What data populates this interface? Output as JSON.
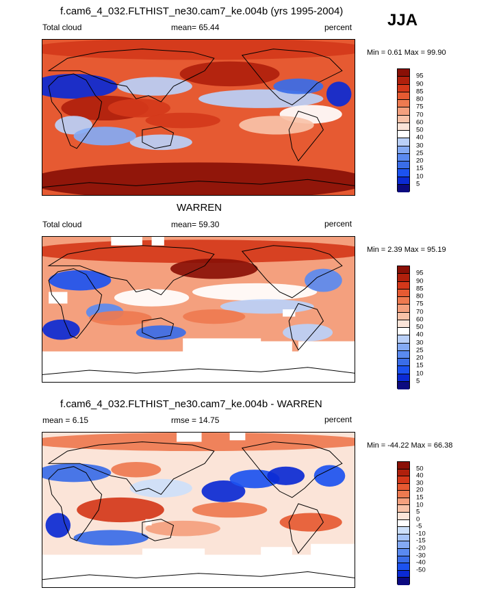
{
  "season": "JJA",
  "colors": {
    "abs_scale": [
      "#0c0a80",
      "#0b2ad4",
      "#1c52f0",
      "#3a6de8",
      "#5a8af0",
      "#84aaf4",
      "#bad0f8",
      "#ffffff",
      "#fbe4d8",
      "#f8c2a8",
      "#f4a07e",
      "#ee7a50",
      "#e65a32",
      "#d4381a",
      "#b0200c",
      "#8a1006"
    ],
    "diff_scale": [
      "#0c0a80",
      "#0b2ad4",
      "#1c52f0",
      "#3a6de8",
      "#5a8af0",
      "#84aaf4",
      "#a6c4f8",
      "#cde0fa",
      "#ffffff",
      "#fbe4d8",
      "#f8c2a8",
      "#f4a07e",
      "#ee7a50",
      "#e65a32",
      "#d4381a",
      "#b0200c",
      "#8a1006"
    ],
    "coast": "#000000",
    "missing": "#ffffff"
  },
  "panels": [
    {
      "title": "f.cam6_4_032.FLTHIST_ne30.cam7_ke.004b (yrs 1995-2004)",
      "left_label": "Total cloud",
      "center_label": "mean=  65.44",
      "right_label": "percent",
      "minmax": "Min =   0.61 Max =  99.90",
      "colorbar_ticks": [
        "95",
        "90",
        "85",
        "80",
        "75",
        "70",
        "60",
        "50",
        "40",
        "30",
        "25",
        "20",
        "15",
        "10",
        "5"
      ]
    },
    {
      "title": "WARREN",
      "left_label": "Total cloud",
      "center_label": "mean=  59.30",
      "right_label": "percent",
      "minmax": "Min =   2.39 Max =  95.19",
      "colorbar_ticks": [
        "95",
        "90",
        "85",
        "80",
        "75",
        "70",
        "60",
        "50",
        "40",
        "30",
        "25",
        "20",
        "15",
        "10",
        "5"
      ]
    },
    {
      "title": "f.cam6_4_032.FLTHIST_ne30.cam7_ke.004b - WARREN",
      "left_label": "mean =   6.15",
      "center_label": "rmse =  14.75",
      "right_label": "percent",
      "minmax": "Min = -44.22 Max =  66.38",
      "colorbar_ticks": [
        "50",
        "40",
        "30",
        "20",
        "15",
        "10",
        "5",
        "0",
        "-5",
        "-10",
        "-15",
        "-20",
        "-30",
        "-40",
        "-50"
      ]
    }
  ]
}
